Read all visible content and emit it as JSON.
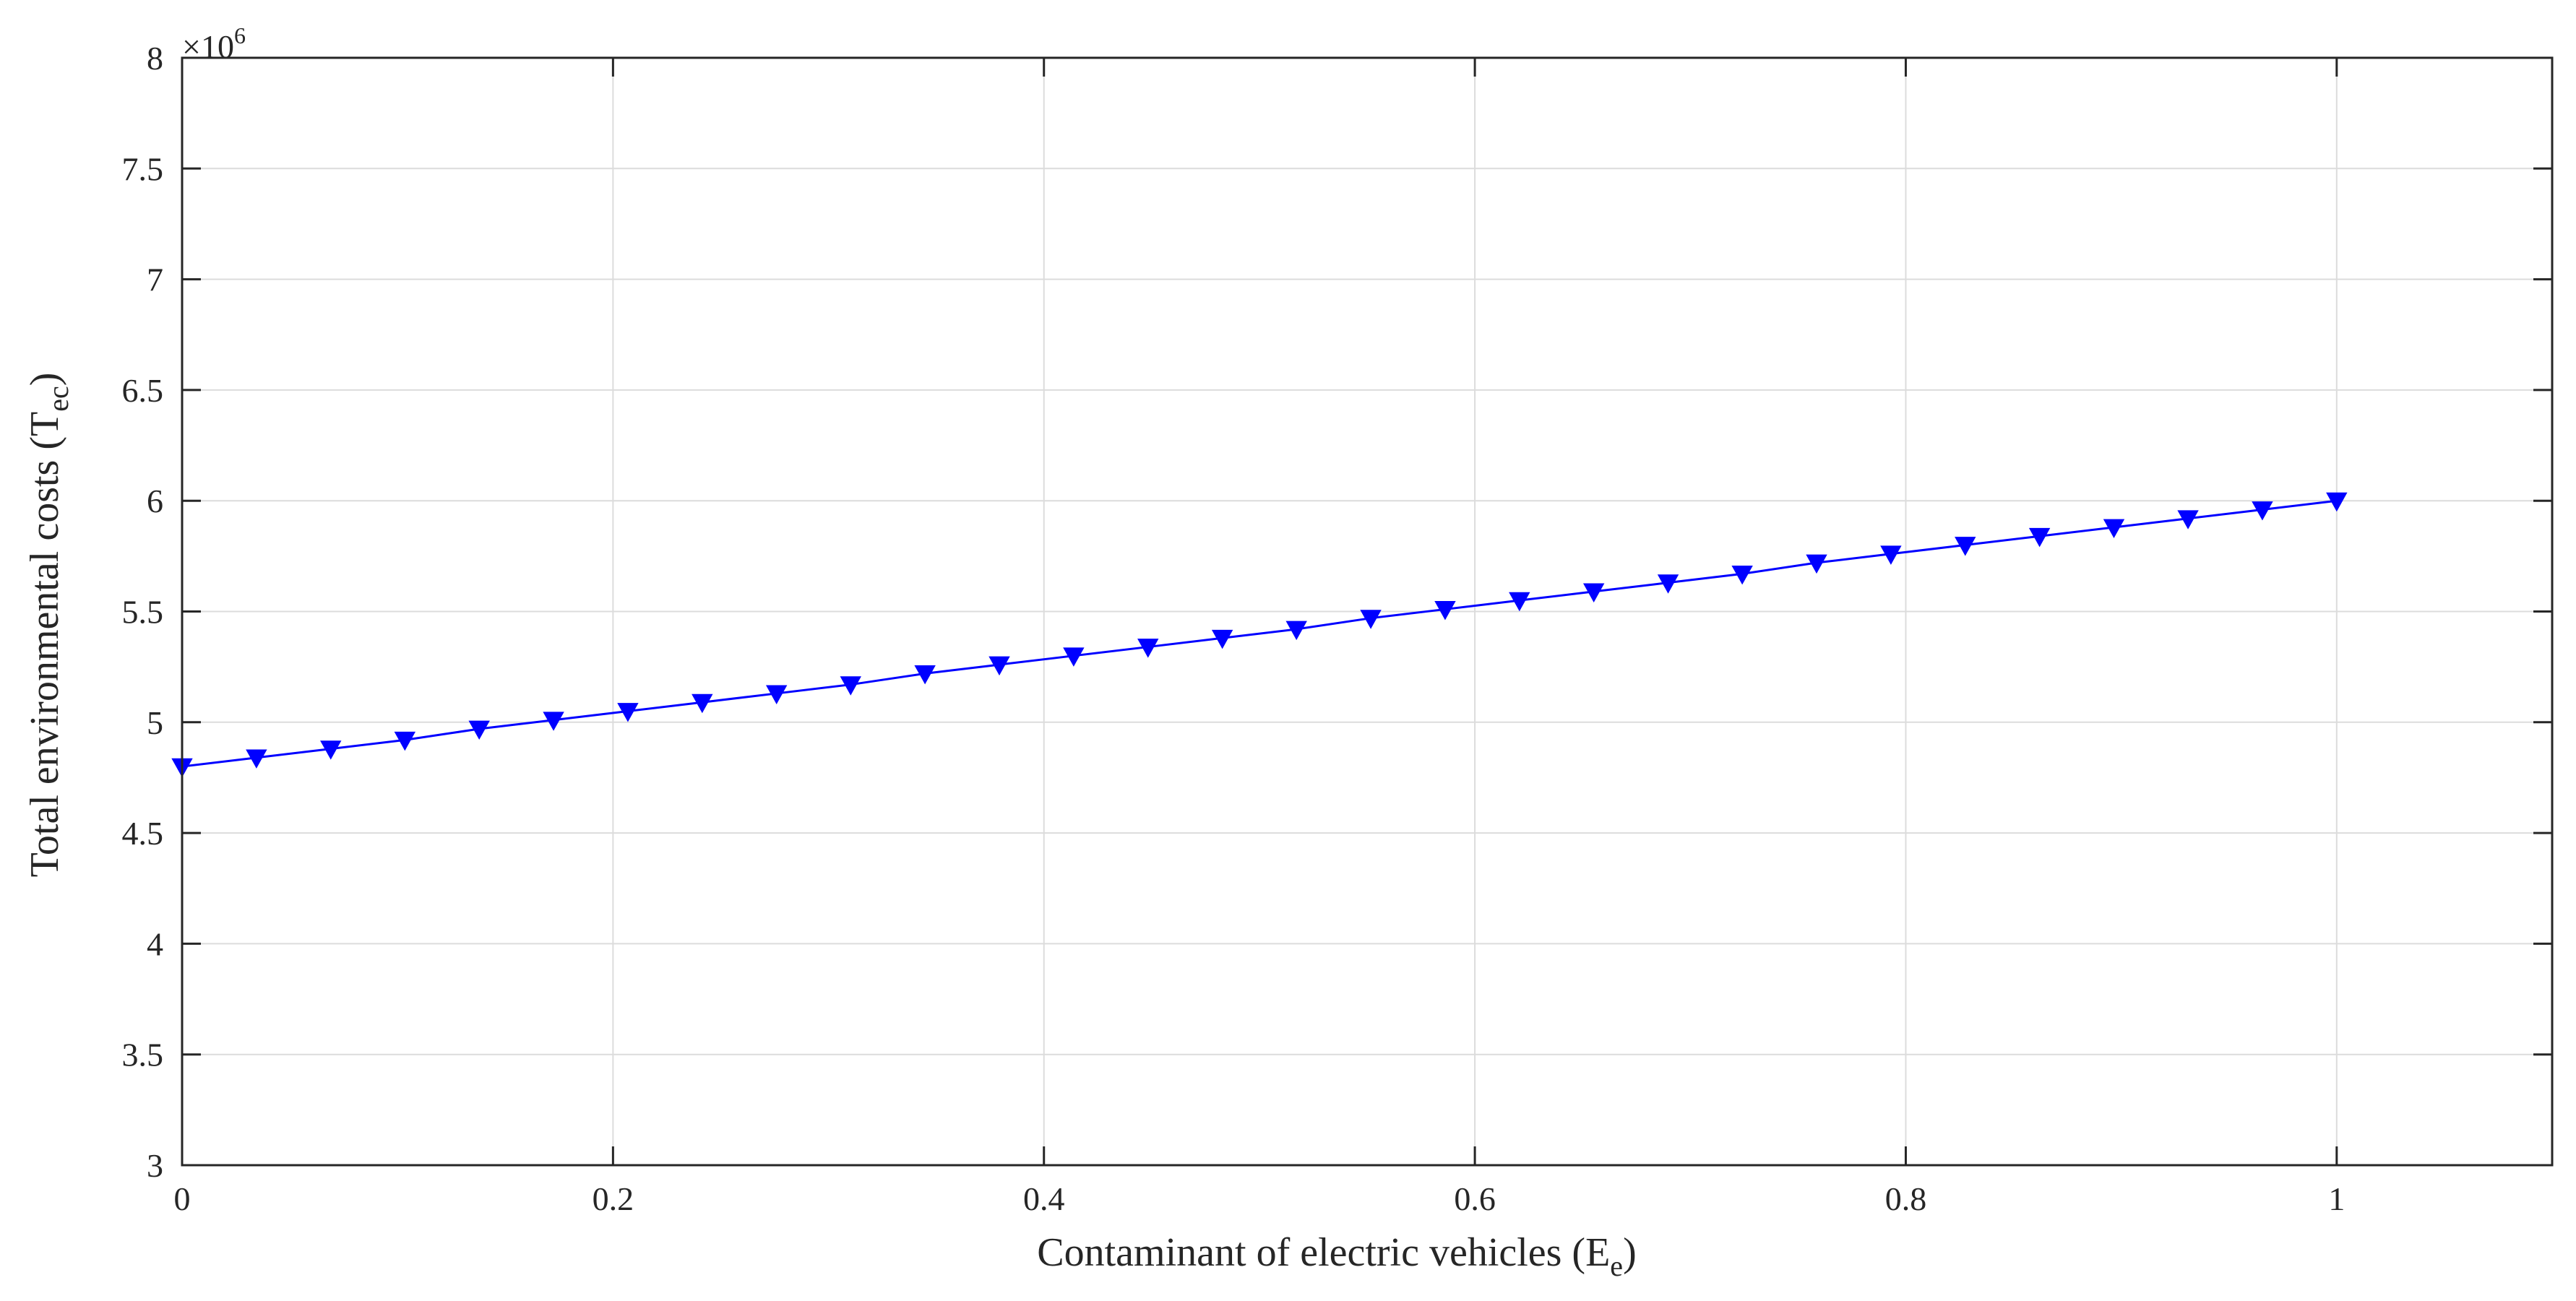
{
  "chart_data": {
    "type": "line",
    "title": "",
    "xlabel": {
      "main": "Contaminant of electric vehicles (E",
      "sub": "e",
      "close": ")"
    },
    "ylabel": {
      "main": "Total environmental costs (T",
      "sub": "ec",
      "close": ")"
    },
    "y_multiplier": {
      "base": "×10",
      "exponent": "6"
    },
    "xlim": [
      0,
      1.1
    ],
    "ylim": [
      3,
      8
    ],
    "xticks": [
      "0",
      "0.2",
      "0.4",
      "0.6",
      "0.8",
      "1"
    ],
    "yticks": [
      "3",
      "3.5",
      "4",
      "4.5",
      "5",
      "5.5",
      "6",
      "6.5",
      "7",
      "7.5",
      "8"
    ],
    "grid": true,
    "series": [
      {
        "color": "#0000ff",
        "marker": "down-triangle",
        "x": [
          0,
          0.0345,
          0.069,
          0.1034,
          0.1379,
          0.1724,
          0.2069,
          0.2414,
          0.2759,
          0.3103,
          0.3448,
          0.3793,
          0.4138,
          0.4483,
          0.4828,
          0.5172,
          0.5517,
          0.5862,
          0.6207,
          0.6552,
          0.6897,
          0.7241,
          0.7586,
          0.7931,
          0.8276,
          0.8621,
          0.8966,
          0.931,
          0.9655,
          1.0
        ],
        "y": [
          4.8,
          4.84,
          4.88,
          4.92,
          4.97,
          5.01,
          5.05,
          5.09,
          5.13,
          5.17,
          5.22,
          5.26,
          5.3,
          5.34,
          5.38,
          5.42,
          5.47,
          5.51,
          5.55,
          5.59,
          5.63,
          5.67,
          5.72,
          5.76,
          5.8,
          5.84,
          5.88,
          5.92,
          5.96,
          6.0
        ]
      }
    ]
  }
}
